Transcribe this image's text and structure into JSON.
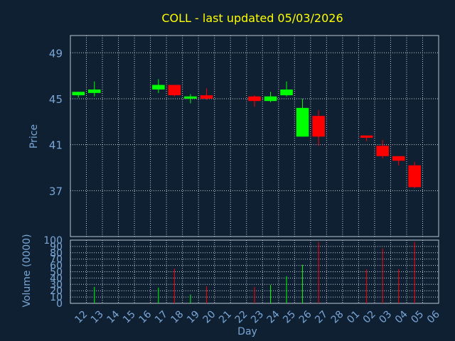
{
  "colors": {
    "background": "#0f2033",
    "title": "#ffff00",
    "axis_text": "#7aa6d6",
    "frame": "#b8c4d0",
    "grid": "#c8d0d8",
    "up": "#00ff00",
    "down": "#ff0000"
  },
  "chart_data": [
    {
      "type": "candlestick",
      "title": "COLL - last updated 05/03/2026",
      "ylabel": "Price",
      "ylim": [
        33,
        50.5
      ],
      "yticks": [
        37,
        41,
        45,
        49
      ],
      "grid": true,
      "x": [
        "12",
        "13",
        "14",
        "15",
        "16",
        "17",
        "18",
        "19",
        "20",
        "21",
        "22",
        "23",
        "24",
        "25",
        "26",
        "27",
        "28",
        "01",
        "02",
        "03",
        "04",
        "05",
        "06"
      ],
      "candles": [
        {
          "day": "12",
          "open": 45.3,
          "high": 45.6,
          "low": 45.1,
          "close": 45.6
        },
        {
          "day": "13",
          "open": 45.5,
          "high": 46.5,
          "low": 45.2,
          "close": 45.8
        },
        {
          "day": "17",
          "open": 45.8,
          "high": 46.7,
          "low": 45.5,
          "close": 46.2
        },
        {
          "day": "18",
          "open": 46.2,
          "high": 46.2,
          "low": 45.2,
          "close": 45.3
        },
        {
          "day": "19",
          "open": 45.0,
          "high": 45.4,
          "low": 44.6,
          "close": 45.2
        },
        {
          "day": "20",
          "open": 45.3,
          "high": 45.9,
          "low": 44.9,
          "close": 45.0
        },
        {
          "day": "23",
          "open": 45.2,
          "high": 45.3,
          "low": 44.3,
          "close": 44.8
        },
        {
          "day": "24",
          "open": 44.8,
          "high": 45.6,
          "low": 44.7,
          "close": 45.2
        },
        {
          "day": "25",
          "open": 45.3,
          "high": 46.5,
          "low": 45.2,
          "close": 45.8
        },
        {
          "day": "26",
          "open": 41.7,
          "high": 45.0,
          "low": 41.7,
          "close": 44.2
        },
        {
          "day": "27",
          "open": 43.5,
          "high": 44.0,
          "low": 40.9,
          "close": 41.7
        },
        {
          "day": "02",
          "open": 41.8,
          "high": 41.8,
          "low": 41.3,
          "close": 41.6
        },
        {
          "day": "03",
          "open": 40.9,
          "high": 41.4,
          "low": 39.8,
          "close": 40.0
        },
        {
          "day": "04",
          "open": 40.0,
          "high": 40.0,
          "low": 39.2,
          "close": 39.6
        },
        {
          "day": "05",
          "open": 39.2,
          "high": 39.5,
          "low": 37.2,
          "close": 37.3
        }
      ]
    },
    {
      "type": "bar",
      "ylabel": "Volume (0000)",
      "xlabel": "Day",
      "ylim": [
        0,
        100
      ],
      "yticks": [
        0,
        10,
        20,
        30,
        40,
        50,
        60,
        70,
        80,
        90,
        100
      ],
      "categories": [
        "12",
        "13",
        "14",
        "15",
        "16",
        "17",
        "18",
        "19",
        "20",
        "21",
        "22",
        "23",
        "24",
        "25",
        "26",
        "27",
        "28",
        "01",
        "02",
        "03",
        "04",
        "05",
        "06"
      ],
      "values": [
        0,
        26,
        0,
        0,
        0,
        25,
        55,
        14,
        27,
        0,
        0,
        26,
        29,
        43,
        61,
        97,
        0,
        0,
        54,
        87,
        54,
        97,
        0
      ],
      "colors": [
        "",
        "up",
        "",
        "",
        "",
        "up",
        "down",
        "up",
        "down",
        "",
        "",
        "down",
        "up",
        "up",
        "up",
        "down",
        "",
        "",
        "down",
        "down",
        "down",
        "down",
        ""
      ]
    }
  ]
}
